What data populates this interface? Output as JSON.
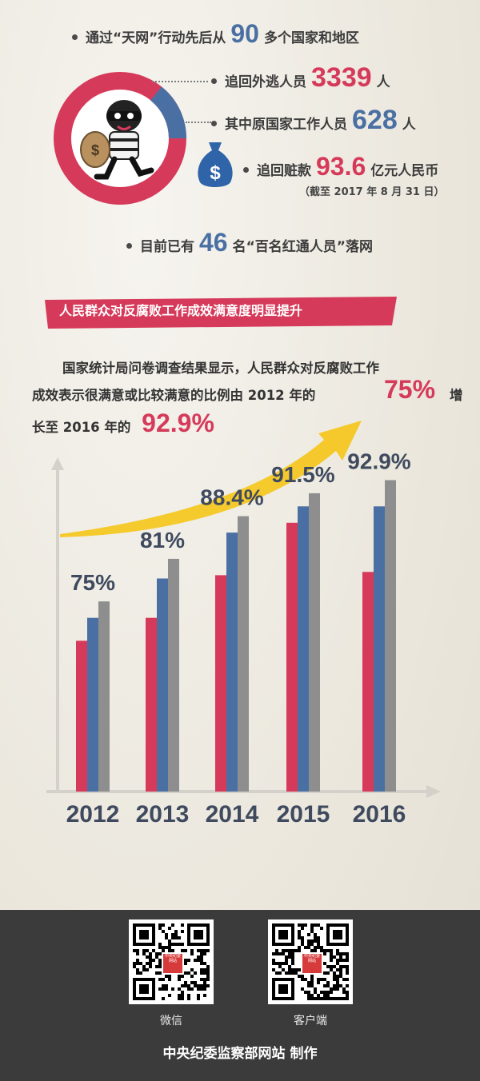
{
  "stats": {
    "countries": {
      "prefix": "通过“天网”行动先后从",
      "value": "90",
      "suffix": "多个国家和地区"
    },
    "fugitives": {
      "prefix": "追回外逃人员",
      "value": "3339",
      "suffix": "人"
    },
    "officials": {
      "prefix": "其中原国家工作人员",
      "value": "628",
      "suffix": "人"
    },
    "money": {
      "prefix": "追回赃款",
      "value": "93.6",
      "suffix": "亿元人民币"
    },
    "date_note": "（截至 2017 年 8 月 31 日）",
    "redlist": {
      "prefix": "目前已有",
      "value": "46",
      "suffix": "名“百名红通人员”落网"
    }
  },
  "icons": {
    "thief": "thief-icon",
    "money_bag": "money-bag-icon",
    "dollar_sign": "$"
  },
  "colors": {
    "red": "#d63a5a",
    "blue": "#4a70a3",
    "gray": "#8e8e8e",
    "navy": "#3f4a5e",
    "arrow": "#f5c518"
  },
  "section_title": "人民群众对反腐败工作成效满意度明显提升",
  "paragraph": {
    "line1": "国家统计局问卷调查结果显示，人民群众对反腐败工作",
    "line2_a": "成效表示很满意或比较满意的比例由 2012 年的",
    "line2_pct": "75%",
    "line2_b": "增",
    "line3_a": "长至 2016 年的",
    "line3_pct": "92.9%"
  },
  "chart_data": {
    "type": "bar",
    "categories": [
      "2012",
      "2013",
      "2014",
      "2015",
      "2016"
    ],
    "labels": [
      "75%",
      "81%",
      "88.4%",
      "91.5%",
      "92.9%"
    ],
    "values": [
      75,
      81,
      88.4,
      91.5,
      92.9
    ],
    "series": [
      {
        "values": [
          46,
          53,
          66,
          82,
          67
        ],
        "color": "#d63a5a"
      },
      {
        "values": [
          53,
          65,
          79,
          87,
          87
        ],
        "color": "#4a70a3"
      },
      {
        "values": [
          58,
          71,
          84,
          91,
          95
        ],
        "color": "#8e8e8e"
      }
    ],
    "ylim": [
      0,
      100
    ],
    "grid": false,
    "legend": "none"
  },
  "footer": {
    "qr1_label": "微信",
    "qr2_label": "客户端",
    "qr_logo_text": "中央纪委网站",
    "credit": "中央纪委监察部网站  制作"
  }
}
